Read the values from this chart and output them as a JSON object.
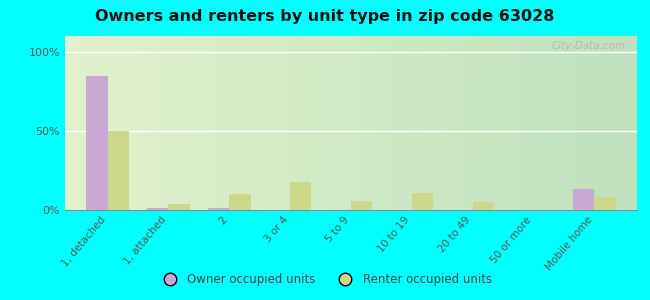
{
  "title": "Owners and renters by unit type in zip code 63028",
  "categories": [
    "1, detached",
    "1, attached",
    "2",
    "3 or 4",
    "5 to 9",
    "10 to 19",
    "20 to 49",
    "50 or more",
    "Mobile home"
  ],
  "owner_values": [
    85,
    1,
    1,
    0,
    0,
    0,
    0,
    0,
    13
  ],
  "renter_values": [
    50,
    4,
    10,
    18,
    6,
    11,
    5,
    0,
    8
  ],
  "owner_color": "#c9a8d4",
  "renter_color": "#ccd98a",
  "background_color": "#00ffff",
  "yticks": [
    0,
    50,
    100
  ],
  "ylabels": [
    "0%",
    "50%",
    "100%"
  ],
  "ylim": [
    0,
    110
  ],
  "bar_width": 0.35,
  "legend_owner": "Owner occupied units",
  "legend_renter": "Renter occupied units",
  "watermark": "City-Data.com"
}
